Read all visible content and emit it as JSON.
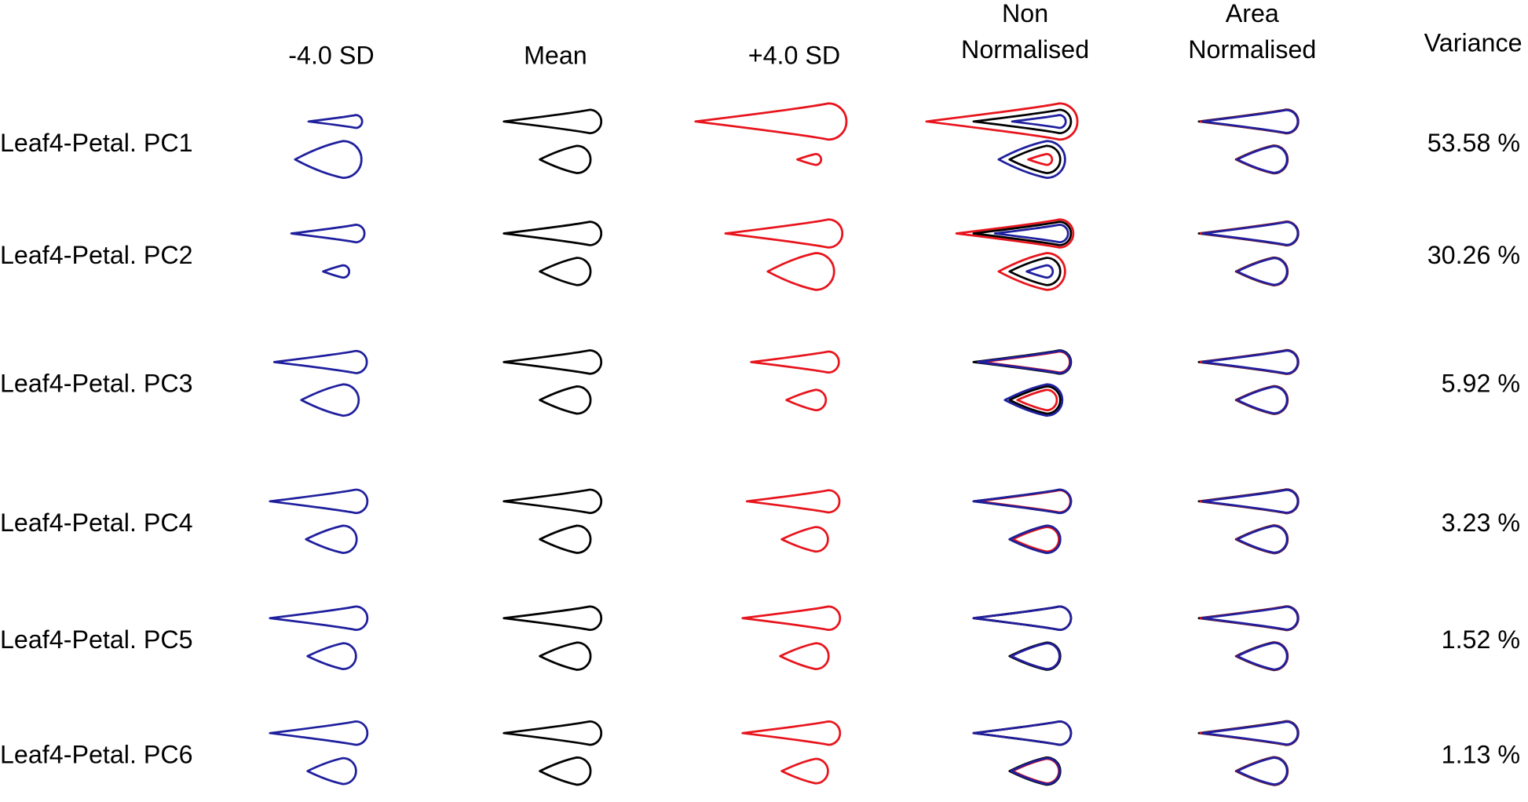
{
  "header": {
    "columns": [
      [
        "-4.0 SD"
      ],
      [
        "Mean"
      ],
      [
        "+4.0 SD"
      ],
      [
        "Non",
        "Normalised"
      ],
      [
        "Area",
        "Normalised"
      ],
      [
        "Variance"
      ]
    ]
  },
  "rows": [
    {
      "label": "Leaf4-Petal. PC1",
      "variance": "53.58 %"
    },
    {
      "label": "Leaf4-Petal. PC2",
      "variance": "30.26 %"
    },
    {
      "label": "Leaf4-Petal. PC3",
      "variance": "5.92 %"
    },
    {
      "label": "Leaf4-Petal. PC4",
      "variance": "3.23 %"
    },
    {
      "label": "Leaf4-Petal. PC5",
      "variance": "1.52 %"
    },
    {
      "label": "Leaf4-Petal. PC6",
      "variance": "1.13 %"
    }
  ]
}
